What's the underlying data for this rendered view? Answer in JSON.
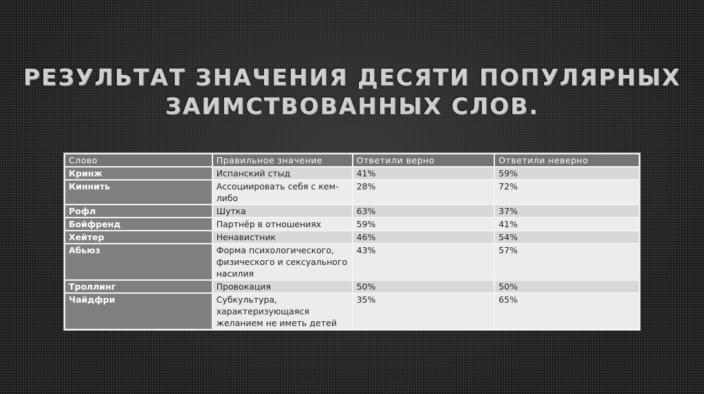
{
  "title": {
    "line1": "Результат значения десяти популярных",
    "line2": "заимствованных слов."
  },
  "table": {
    "headers": [
      "Слово",
      "Правильное значение",
      "Ответили верно",
      "Ответили неверно"
    ],
    "rows": [
      {
        "word": "Кринж",
        "meaning": "Испанский стыд",
        "correct": "41%",
        "wrong": "59%"
      },
      {
        "word": "Киннить",
        "meaning": "Ассоциировать себя с кем-либо",
        "correct": "28%",
        "wrong": "72%"
      },
      {
        "word": "Рофл",
        "meaning": "Шутка",
        "correct": "63%",
        "wrong": "37%"
      },
      {
        "word": "Бойфренд",
        "meaning": "Партнёр в отношениях",
        "correct": "59%",
        "wrong": "41%"
      },
      {
        "word": "Хейтер",
        "meaning": "Ненавистник",
        "correct": "46%",
        "wrong": "54%"
      },
      {
        "word": "Абьюз",
        "meaning": "Форма психологического, физического и сексуального насилия",
        "correct": "43%",
        "wrong": "57%"
      },
      {
        "word": "Троллинг",
        "meaning": "Провокация",
        "correct": "50%",
        "wrong": "50%"
      },
      {
        "word": "Чайдфри",
        "meaning": "Субкультура, характеризующаяся желанием не иметь детей",
        "correct": "35%",
        "wrong": "65%"
      }
    ]
  }
}
